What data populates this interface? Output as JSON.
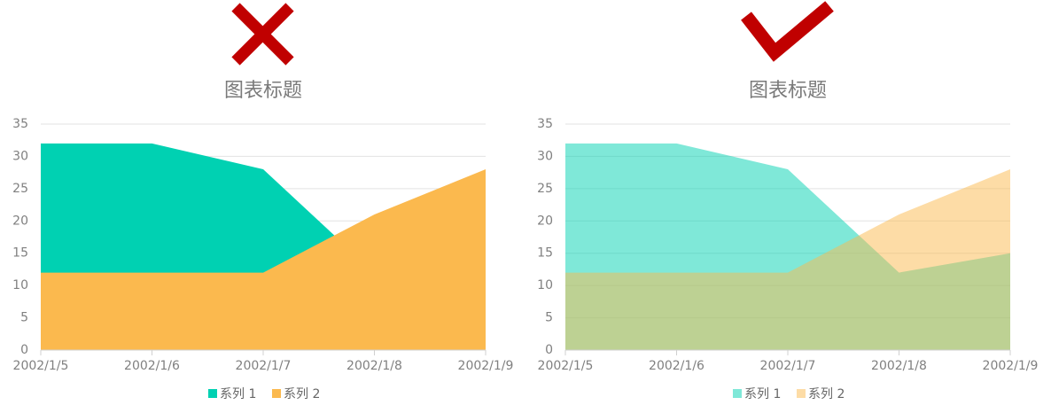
{
  "chart_data": [
    {
      "type": "area",
      "title": "图表标题",
      "categories": [
        "2002/1/5",
        "2002/1/6",
        "2002/1/7",
        "2002/1/8",
        "2002/1/9"
      ],
      "series": [
        {
          "name": "系列 1",
          "color": "#00d1b2",
          "values": [
            32,
            32,
            28,
            12,
            15
          ]
        },
        {
          "name": "系列 2",
          "color": "#fbb94e",
          "values": [
            12,
            12,
            12,
            21,
            28
          ]
        }
      ],
      "opacity": 1,
      "ylim": [
        0,
        35
      ],
      "yticks": [
        0,
        5,
        10,
        15,
        20,
        25,
        30,
        35
      ],
      "grid": true
    },
    {
      "type": "area",
      "title": "图表标题",
      "categories": [
        "2002/1/5",
        "2002/1/6",
        "2002/1/7",
        "2002/1/8",
        "2002/1/9"
      ],
      "series": [
        {
          "name": "系列 1",
          "color": "#00d1b2",
          "values": [
            32,
            32,
            28,
            12,
            15
          ]
        },
        {
          "name": "系列 2",
          "color": "#fbb94e",
          "values": [
            12,
            12,
            12,
            21,
            28
          ]
        }
      ],
      "opacity": 0.5,
      "ylim": [
        0,
        35
      ],
      "yticks": [
        0,
        5,
        10,
        15,
        20,
        25,
        30,
        35
      ],
      "grid": true
    }
  ]
}
